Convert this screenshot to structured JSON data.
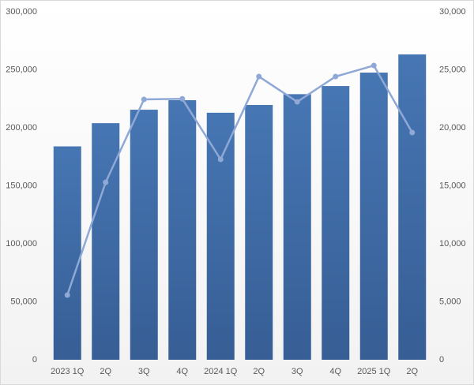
{
  "chart_data": {
    "type": "bar-line",
    "categories": [
      "2023 1Q",
      "2Q",
      "3Q",
      "4Q",
      "2024 1Q",
      "2Q",
      "3Q",
      "4Q",
      "2025 1Q",
      "2Q"
    ],
    "series": [
      {
        "type": "bar",
        "color": "#3f6ca6",
        "values": [
          184000,
          204000,
          215600,
          223800,
          213000,
          219700,
          229000,
          236000,
          247600,
          263300
        ]
      },
      {
        "type": "line",
        "axis": "y2",
        "color": "#8fa8d6",
        "values": [
          5580,
          15300,
          22450,
          22500,
          17280,
          24420,
          22240,
          24420,
          25370,
          19590
        ]
      }
    ],
    "ylim": [
      0,
      300000
    ],
    "yticks": [
      0,
      {
        "value": 50000,
        "label": "50,000"
      },
      {
        "value": 100000,
        "label": "100,000"
      },
      {
        "value": 150000,
        "label": "150,000"
      },
      {
        "value": 200000,
        "label": "200,000"
      },
      {
        "value": 250000,
        "label": "250,000"
      },
      {
        "value": 300000,
        "label": "300,000"
      }
    ],
    "y2lim": [
      0,
      30000
    ],
    "y2ticks": [
      0,
      {
        "value": 5000,
        "label": "5,000"
      },
      {
        "value": 10000,
        "label": "10,000"
      },
      {
        "value": 15000,
        "label": "15,000"
      },
      {
        "value": 20000,
        "label": "20,000"
      },
      {
        "value": 25000,
        "label": "25,000"
      },
      {
        "value": 30000,
        "label": "30,000"
      }
    ]
  }
}
